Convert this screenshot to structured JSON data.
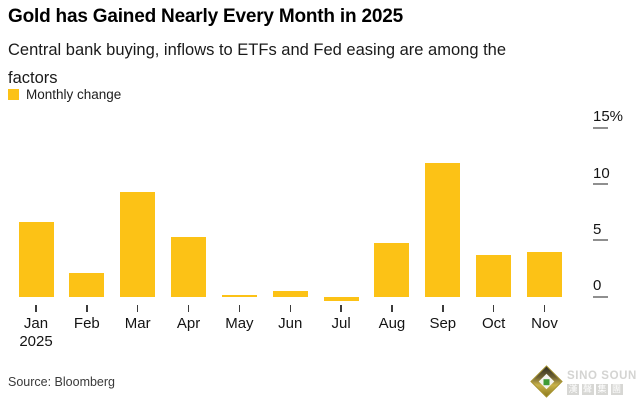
{
  "header": {
    "title": "Gold has Gained Nearly Every Month in 2025",
    "subtitle": "Central bank buying, inflows to ETFs and Fed easing are among the factors"
  },
  "legend": {
    "label": "Monthly change",
    "swatch_color": "#FCC216"
  },
  "chart_data": {
    "type": "bar",
    "title": "Gold has Gained Nearly Every Month in 2025",
    "subtitle": "Central bank buying, inflows to ETFs and Fed easing are among the factors",
    "categories": [
      "Jan",
      "Feb",
      "Mar",
      "Apr",
      "May",
      "Jun",
      "Jul",
      "Aug",
      "Sep",
      "Oct",
      "Nov"
    ],
    "values": [
      6.6,
      2.1,
      9.3,
      5.3,
      0.1,
      0.5,
      -0.4,
      4.8,
      11.9,
      3.7,
      4.0
    ],
    "unit": "%",
    "xlabel": "",
    "ylabel": "Monthly change (%)",
    "ylim": [
      -1,
      16
    ],
    "yticks": [
      0,
      5,
      10,
      15
    ],
    "ytick_labels": [
      "0",
      "5",
      "10",
      "15%"
    ],
    "x_year_label": "2025",
    "x_year_index": 0,
    "bar_color": "#FCC216",
    "legend_entries": [
      "Monthly change"
    ],
    "legend_position": "top-left",
    "axis_side": "right",
    "grid": false
  },
  "footer": {
    "source": "Source: Bloomberg"
  },
  "watermark": {
    "name": "SINO SOUND",
    "cjk_chars": [
      "漢",
      "聲",
      "集",
      "團"
    ]
  }
}
